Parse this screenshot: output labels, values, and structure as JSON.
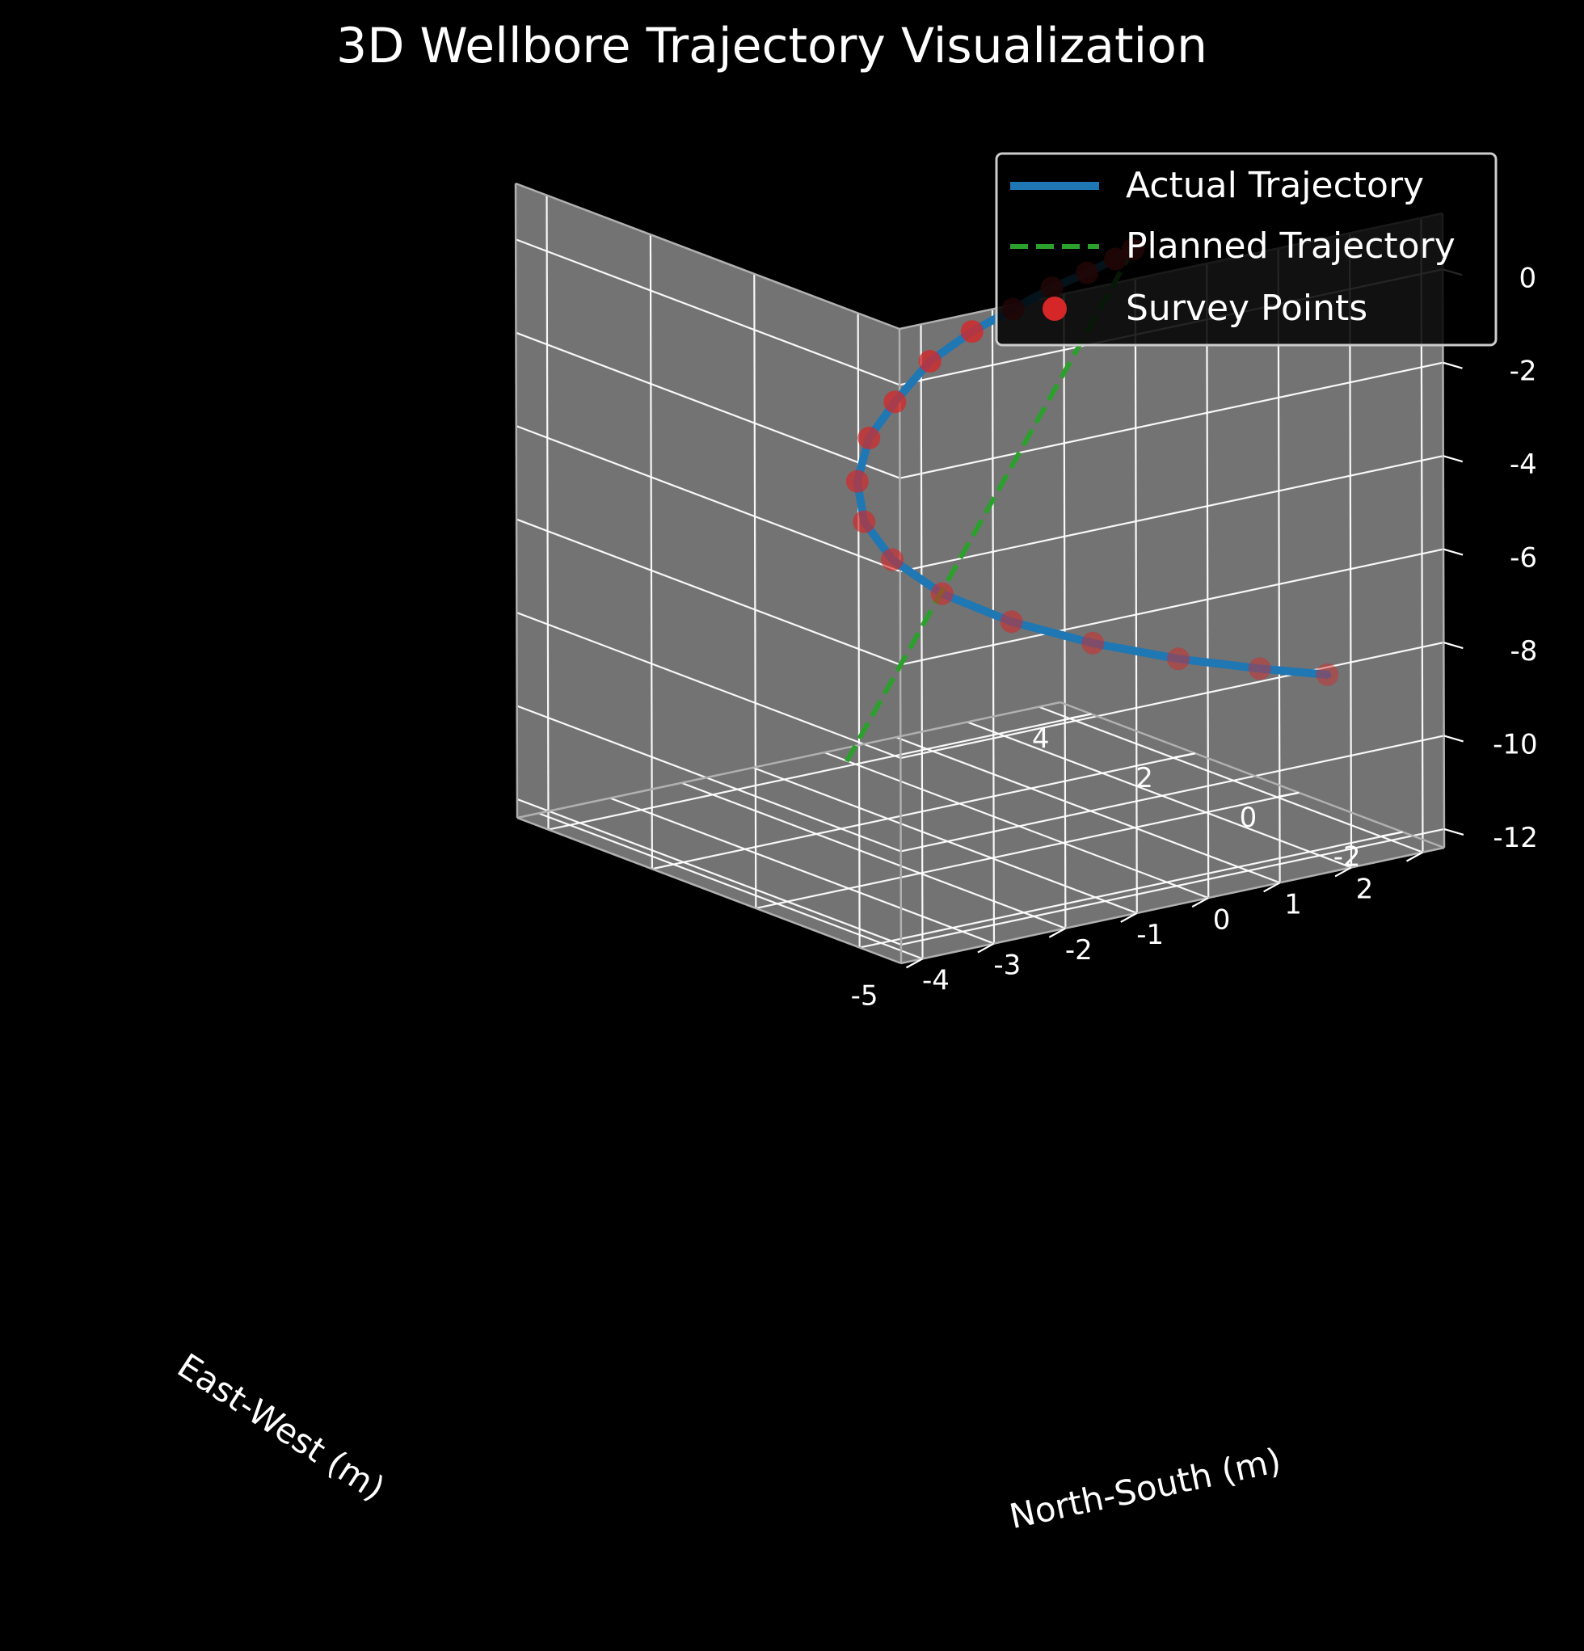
{
  "chart_data": {
    "type": "line",
    "projection": "3d",
    "title": "3D Wellbore Trajectory Visualization",
    "xlabel": "East-West (m)",
    "ylabel": "North-South (m)",
    "zlabel": "",
    "xlim": [
      -2.8,
      4.6
    ],
    "ylim": [
      -5.3,
      2.3
    ],
    "zlim": [
      -12.4,
      1.2
    ],
    "xticks": [
      -2,
      0,
      2,
      4
    ],
    "yticks": [
      -5,
      -4,
      -3,
      -2,
      -1,
      0,
      1,
      2
    ],
    "zticks": [
      0,
      -2,
      -4,
      -6,
      -8,
      -10,
      -12
    ],
    "xtick_labels": [
      "-2",
      "0",
      "2",
      "4"
    ],
    "ytick_labels": [
      "-5",
      "-4",
      "-3",
      "-2",
      "-1",
      "0",
      "1",
      "2"
    ],
    "ztick_labels": [
      "0",
      "-2",
      "-4",
      "-6",
      "-8",
      "-10",
      "-12"
    ],
    "grid": true,
    "legend_position": "top-right",
    "colors": {
      "background": "#000000",
      "pane": "#737373",
      "grid": "#ffffff",
      "actual": "#1f77b4",
      "planned": "#2ca02c",
      "survey": "#d62728",
      "text": "#ffffff"
    },
    "series": [
      {
        "name": "Actual Trajectory",
        "style": "solid",
        "x": [
          0.0,
          0.26,
          0.6,
          0.92,
          1.15,
          1.25,
          1.18,
          0.92,
          0.47,
          -0.13,
          -0.84,
          -1.6,
          -2.34,
          -2.96,
          -3.37,
          -3.5,
          -3.32,
          -2.83
        ],
        "y": [
          0.0,
          -0.06,
          -0.21,
          -0.47,
          -0.85,
          -1.35,
          -1.99,
          -2.67,
          -3.36,
          -3.96,
          -4.38,
          -4.54,
          -4.38,
          -3.86,
          -3.02,
          -1.92,
          -0.65,
          0.65
        ],
        "z": [
          0.0,
          -0.3,
          -0.69,
          -1.06,
          -1.49,
          -1.85,
          -2.25,
          -2.79,
          -3.15,
          -3.63,
          -4.06,
          -4.5,
          -4.97,
          -5.48,
          -6.04,
          -6.68,
          -7.38,
          -8.14
        ]
      },
      {
        "name": "Planned Trajectory",
        "style": "dashed",
        "x": [
          0.0,
          3.5
        ],
        "y": [
          0.0,
          -1.5
        ],
        "z": [
          0.0,
          -12.0
        ]
      },
      {
        "name": "Survey Points",
        "style": "markers",
        "x": [
          0.0,
          0.26,
          0.6,
          0.92,
          1.15,
          1.25,
          1.18,
          0.92,
          0.47,
          -0.13,
          -0.84,
          -1.6,
          -2.34,
          -2.96,
          -3.37,
          -3.5,
          -3.32,
          -2.83
        ],
        "y": [
          0.0,
          -0.06,
          -0.21,
          -0.47,
          -0.85,
          -1.35,
          -1.99,
          -2.67,
          -3.36,
          -3.96,
          -4.38,
          -4.54,
          -4.38,
          -3.86,
          -3.02,
          -1.92,
          -0.65,
          0.65
        ],
        "z": [
          0.0,
          -0.3,
          -0.69,
          -1.06,
          -1.49,
          -1.85,
          -2.25,
          -2.79,
          -3.15,
          -3.63,
          -4.06,
          -4.5,
          -4.97,
          -5.48,
          -6.04,
          -6.68,
          -7.38,
          -8.14
        ]
      }
    ]
  }
}
